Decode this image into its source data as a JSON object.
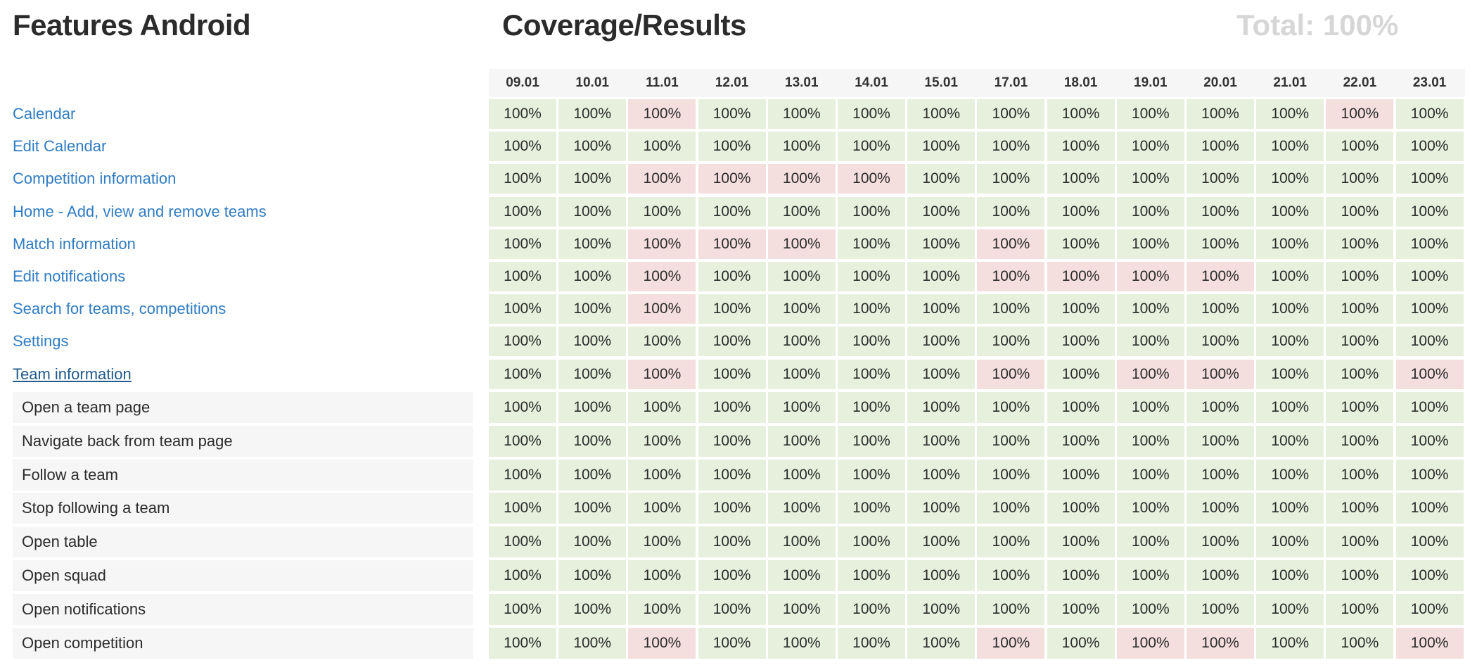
{
  "header": {
    "features_title": "Features Android",
    "coverage_title": "Coverage/Results",
    "total": "Total: 100%"
  },
  "dates": [
    "09.01",
    "10.01",
    "11.01",
    "12.01",
    "13.01",
    "14.01",
    "15.01",
    "17.01",
    "18.01",
    "19.01",
    "20.01",
    "21.01",
    "22.01",
    "23.01"
  ],
  "colors": {
    "pass": "#e6f0dc",
    "fail": "#f4dede",
    "link": "#2f7cc4"
  },
  "rows": [
    {
      "label": "Calendar",
      "kind": "feature",
      "values": [
        "100%",
        "100%",
        "100%",
        "100%",
        "100%",
        "100%",
        "100%",
        "100%",
        "100%",
        "100%",
        "100%",
        "100%",
        "100%",
        "100%"
      ],
      "status": [
        "pass",
        "pass",
        "fail",
        "pass",
        "pass",
        "pass",
        "pass",
        "pass",
        "pass",
        "pass",
        "pass",
        "pass",
        "fail",
        "pass"
      ]
    },
    {
      "label": "Edit Calendar",
      "kind": "feature",
      "values": [
        "100%",
        "100%",
        "100%",
        "100%",
        "100%",
        "100%",
        "100%",
        "100%",
        "100%",
        "100%",
        "100%",
        "100%",
        "100%",
        "100%"
      ],
      "status": [
        "pass",
        "pass",
        "pass",
        "pass",
        "pass",
        "pass",
        "pass",
        "pass",
        "pass",
        "pass",
        "pass",
        "pass",
        "pass",
        "pass"
      ]
    },
    {
      "label": "Competition information",
      "kind": "feature",
      "values": [
        "100%",
        "100%",
        "100%",
        "100%",
        "100%",
        "100%",
        "100%",
        "100%",
        "100%",
        "100%",
        "100%",
        "100%",
        "100%",
        "100%"
      ],
      "status": [
        "pass",
        "pass",
        "fail",
        "fail",
        "fail",
        "fail",
        "pass",
        "pass",
        "pass",
        "pass",
        "pass",
        "pass",
        "pass",
        "pass"
      ]
    },
    {
      "label": "Home - Add, view and remove teams",
      "kind": "feature",
      "values": [
        "100%",
        "100%",
        "100%",
        "100%",
        "100%",
        "100%",
        "100%",
        "100%",
        "100%",
        "100%",
        "100%",
        "100%",
        "100%",
        "100%"
      ],
      "status": [
        "pass",
        "pass",
        "pass",
        "pass",
        "pass",
        "pass",
        "pass",
        "pass",
        "pass",
        "pass",
        "pass",
        "pass",
        "pass",
        "pass"
      ]
    },
    {
      "label": "Match information",
      "kind": "feature",
      "values": [
        "100%",
        "100%",
        "100%",
        "100%",
        "100%",
        "100%",
        "100%",
        "100%",
        "100%",
        "100%",
        "100%",
        "100%",
        "100%",
        "100%"
      ],
      "status": [
        "pass",
        "pass",
        "fail",
        "fail",
        "fail",
        "pass",
        "pass",
        "fail",
        "pass",
        "pass",
        "pass",
        "pass",
        "pass",
        "pass"
      ]
    },
    {
      "label": "Edit notifications",
      "kind": "feature",
      "values": [
        "100%",
        "100%",
        "100%",
        "100%",
        "100%",
        "100%",
        "100%",
        "100%",
        "100%",
        "100%",
        "100%",
        "100%",
        "100%",
        "100%"
      ],
      "status": [
        "pass",
        "pass",
        "fail",
        "pass",
        "pass",
        "pass",
        "pass",
        "fail",
        "fail",
        "fail",
        "fail",
        "pass",
        "pass",
        "pass"
      ]
    },
    {
      "label": "Search for teams, competitions",
      "kind": "feature",
      "values": [
        "100%",
        "100%",
        "100%",
        "100%",
        "100%",
        "100%",
        "100%",
        "100%",
        "100%",
        "100%",
        "100%",
        "100%",
        "100%",
        "100%"
      ],
      "status": [
        "pass",
        "pass",
        "fail",
        "pass",
        "pass",
        "pass",
        "pass",
        "pass",
        "pass",
        "pass",
        "pass",
        "pass",
        "pass",
        "pass"
      ]
    },
    {
      "label": "Settings",
      "kind": "feature",
      "values": [
        "100%",
        "100%",
        "100%",
        "100%",
        "100%",
        "100%",
        "100%",
        "100%",
        "100%",
        "100%",
        "100%",
        "100%",
        "100%",
        "100%"
      ],
      "status": [
        "pass",
        "pass",
        "pass",
        "pass",
        "pass",
        "pass",
        "pass",
        "pass",
        "pass",
        "pass",
        "pass",
        "pass",
        "pass",
        "pass"
      ]
    },
    {
      "label": "Team information",
      "kind": "feature-active",
      "values": [
        "100%",
        "100%",
        "100%",
        "100%",
        "100%",
        "100%",
        "100%",
        "100%",
        "100%",
        "100%",
        "100%",
        "100%",
        "100%",
        "100%"
      ],
      "status": [
        "pass",
        "pass",
        "fail",
        "pass",
        "pass",
        "pass",
        "pass",
        "fail",
        "pass",
        "fail",
        "fail",
        "pass",
        "pass",
        "fail"
      ]
    },
    {
      "label": "Open a team page",
      "kind": "sub",
      "values": [
        "100%",
        "100%",
        "100%",
        "100%",
        "100%",
        "100%",
        "100%",
        "100%",
        "100%",
        "100%",
        "100%",
        "100%",
        "100%",
        "100%"
      ],
      "status": [
        "pass",
        "pass",
        "pass",
        "pass",
        "pass",
        "pass",
        "pass",
        "pass",
        "pass",
        "pass",
        "pass",
        "pass",
        "pass",
        "pass"
      ]
    },
    {
      "label": "Navigate back from team page",
      "kind": "sub",
      "values": [
        "100%",
        "100%",
        "100%",
        "100%",
        "100%",
        "100%",
        "100%",
        "100%",
        "100%",
        "100%",
        "100%",
        "100%",
        "100%",
        "100%"
      ],
      "status": [
        "pass",
        "pass",
        "pass",
        "pass",
        "pass",
        "pass",
        "pass",
        "pass",
        "pass",
        "pass",
        "pass",
        "pass",
        "pass",
        "pass"
      ]
    },
    {
      "label": "Follow a team",
      "kind": "sub",
      "values": [
        "100%",
        "100%",
        "100%",
        "100%",
        "100%",
        "100%",
        "100%",
        "100%",
        "100%",
        "100%",
        "100%",
        "100%",
        "100%",
        "100%"
      ],
      "status": [
        "pass",
        "pass",
        "pass",
        "pass",
        "pass",
        "pass",
        "pass",
        "pass",
        "pass",
        "pass",
        "pass",
        "pass",
        "pass",
        "pass"
      ]
    },
    {
      "label": "Stop following a team",
      "kind": "sub",
      "values": [
        "100%",
        "100%",
        "100%",
        "100%",
        "100%",
        "100%",
        "100%",
        "100%",
        "100%",
        "100%",
        "100%",
        "100%",
        "100%",
        "100%"
      ],
      "status": [
        "pass",
        "pass",
        "pass",
        "pass",
        "pass",
        "pass",
        "pass",
        "pass",
        "pass",
        "pass",
        "pass",
        "pass",
        "pass",
        "pass"
      ]
    },
    {
      "label": "Open table",
      "kind": "sub",
      "values": [
        "100%",
        "100%",
        "100%",
        "100%",
        "100%",
        "100%",
        "100%",
        "100%",
        "100%",
        "100%",
        "100%",
        "100%",
        "100%",
        "100%"
      ],
      "status": [
        "pass",
        "pass",
        "pass",
        "pass",
        "pass",
        "pass",
        "pass",
        "pass",
        "pass",
        "pass",
        "pass",
        "pass",
        "pass",
        "pass"
      ]
    },
    {
      "label": "Open squad",
      "kind": "sub",
      "values": [
        "100%",
        "100%",
        "100%",
        "100%",
        "100%",
        "100%",
        "100%",
        "100%",
        "100%",
        "100%",
        "100%",
        "100%",
        "100%",
        "100%"
      ],
      "status": [
        "pass",
        "pass",
        "pass",
        "pass",
        "pass",
        "pass",
        "pass",
        "pass",
        "pass",
        "pass",
        "pass",
        "pass",
        "pass",
        "pass"
      ]
    },
    {
      "label": "Open notifications",
      "kind": "sub",
      "values": [
        "100%",
        "100%",
        "100%",
        "100%",
        "100%",
        "100%",
        "100%",
        "100%",
        "100%",
        "100%",
        "100%",
        "100%",
        "100%",
        "100%"
      ],
      "status": [
        "pass",
        "pass",
        "pass",
        "pass",
        "pass",
        "pass",
        "pass",
        "pass",
        "pass",
        "pass",
        "pass",
        "pass",
        "pass",
        "pass"
      ]
    },
    {
      "label": "Open competition",
      "kind": "sub",
      "values": [
        "100%",
        "100%",
        "100%",
        "100%",
        "100%",
        "100%",
        "100%",
        "100%",
        "100%",
        "100%",
        "100%",
        "100%",
        "100%",
        "100%"
      ],
      "status": [
        "pass",
        "pass",
        "fail",
        "pass",
        "pass",
        "pass",
        "pass",
        "fail",
        "pass",
        "fail",
        "fail",
        "pass",
        "pass",
        "fail"
      ]
    }
  ]
}
